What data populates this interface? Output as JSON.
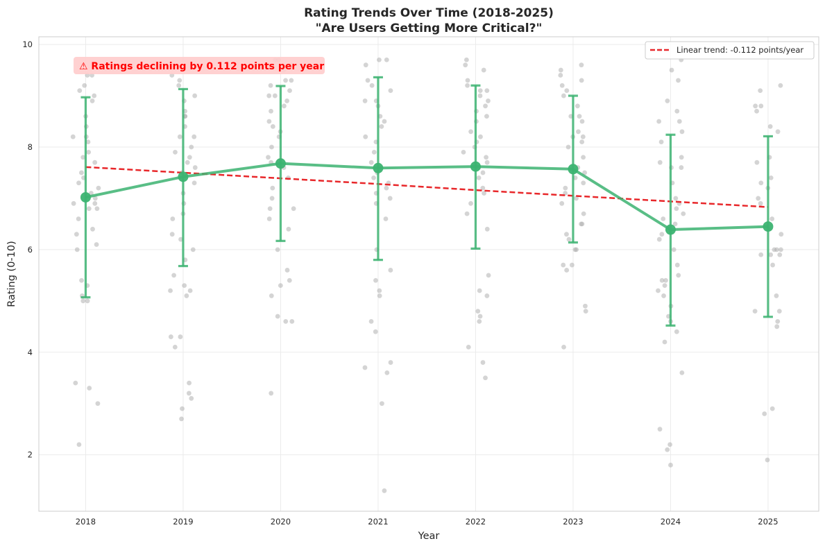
{
  "chart_data": {
    "type": "line",
    "title": "Rating Trends Over Time (2018-2025)",
    "subtitle": "\"Are Users Getting More Critical?\"",
    "xlabel": "Year",
    "ylabel": "Rating (0-10)",
    "x": [
      2018,
      2019,
      2020,
      2021,
      2022,
      2023,
      2024,
      2025
    ],
    "xlim": [
      2017.52,
      2025.52
    ],
    "ylim": [
      0.9,
      10.15
    ],
    "yticks": [
      2,
      4,
      6,
      8,
      10
    ],
    "grid": true,
    "legend_position": "top-right",
    "series": [
      {
        "kind": "mean-with-error",
        "values": [
          7.02,
          7.42,
          7.68,
          7.59,
          7.62,
          7.57,
          6.39,
          6.45
        ],
        "error_low": [
          5.07,
          5.68,
          6.17,
          5.8,
          6.02,
          6.14,
          4.52,
          4.69
        ],
        "error_high": [
          8.97,
          9.13,
          9.19,
          9.36,
          9.2,
          9.0,
          8.24,
          8.21
        ],
        "color": "#3cb371"
      },
      {
        "kind": "trend",
        "name": "Linear trend: -0.112 points/year",
        "values": [
          7.61,
          7.5,
          7.39,
          7.28,
          7.16,
          7.05,
          6.94,
          6.83
        ],
        "color": "#e8272a",
        "style": "dashed"
      }
    ],
    "scatter_color": "#a9a9a9",
    "scatter": [
      {
        "year": 2018,
        "ratings": [
          9.4,
          9.4,
          9.2,
          9.1,
          9.0,
          8.9,
          8.6,
          8.4,
          8.2,
          8.2,
          8.1,
          7.9,
          7.8,
          7.7,
          7.5,
          7.4,
          7.3,
          7.2,
          7.1,
          7.0,
          6.9,
          6.9,
          6.8,
          6.8,
          6.6,
          6.4,
          6.3,
          6.1,
          6.0,
          5.4,
          5.3,
          5.1,
          5.0,
          5.0,
          3.4,
          3.3,
          3.0,
          2.2
        ]
      },
      {
        "year": 2019,
        "ratings": [
          9.4,
          9.3,
          9.2,
          9.0,
          8.9,
          8.7,
          8.6,
          8.6,
          8.4,
          8.2,
          8.2,
          8.0,
          7.9,
          7.8,
          7.7,
          7.6,
          7.5,
          7.3,
          7.1,
          6.9,
          6.7,
          6.6,
          6.3,
          6.2,
          6.0,
          5.8,
          5.5,
          5.3,
          5.2,
          5.2,
          5.1,
          4.3,
          4.3,
          4.1,
          3.4,
          3.2,
          3.1,
          2.9,
          2.7
        ]
      },
      {
        "year": 2020,
        "ratings": [
          9.7,
          9.7,
          9.6,
          9.5,
          9.3,
          9.3,
          9.2,
          9.1,
          9.0,
          9.0,
          8.9,
          8.8,
          8.7,
          8.5,
          8.4,
          8.3,
          8.2,
          8.0,
          7.8,
          7.7,
          7.6,
          7.4,
          7.2,
          7.0,
          6.8,
          6.8,
          6.6,
          6.4,
          6.0,
          5.6,
          5.4,
          5.3,
          5.1,
          4.7,
          4.6,
          4.6,
          3.2
        ]
      },
      {
        "year": 2021,
        "ratings": [
          9.7,
          9.7,
          9.6,
          9.3,
          9.2,
          9.1,
          8.9,
          8.9,
          8.8,
          8.6,
          8.5,
          8.4,
          8.2,
          8.1,
          7.9,
          7.7,
          7.5,
          7.4,
          7.3,
          7.2,
          7.1,
          7.0,
          6.9,
          6.6,
          6.0,
          5.6,
          5.4,
          5.2,
          5.1,
          4.6,
          4.4,
          3.8,
          3.7,
          3.6,
          3.0,
          1.3
        ]
      },
      {
        "year": 2022,
        "ratings": [
          9.7,
          9.6,
          9.5,
          9.3,
          9.2,
          9.1,
          9.1,
          9.0,
          8.9,
          8.8,
          8.7,
          8.6,
          8.5,
          8.3,
          8.2,
          8.1,
          8.0,
          7.9,
          7.8,
          7.7,
          7.6,
          7.5,
          7.4,
          7.2,
          7.1,
          6.9,
          6.7,
          6.4,
          5.5,
          5.2,
          5.1,
          4.8,
          4.7,
          4.6,
          4.1,
          3.8,
          3.5
        ]
      },
      {
        "year": 2023,
        "ratings": [
          9.6,
          9.5,
          9.4,
          9.3,
          9.2,
          9.1,
          9.0,
          8.8,
          8.6,
          8.6,
          8.5,
          8.3,
          8.2,
          8.2,
          8.1,
          8.0,
          7.8,
          7.6,
          7.5,
          7.4,
          7.3,
          7.2,
          7.1,
          7.0,
          6.9,
          6.7,
          6.5,
          6.5,
          6.3,
          6.2,
          6.0,
          6.0,
          5.7,
          5.7,
          5.6,
          4.9,
          4.8,
          4.1
        ]
      },
      {
        "year": 2024,
        "ratings": [
          9.9,
          9.7,
          9.5,
          9.3,
          8.9,
          8.7,
          8.5,
          8.5,
          8.3,
          8.1,
          7.8,
          7.7,
          7.6,
          7.6,
          7.3,
          7.0,
          6.9,
          6.8,
          6.7,
          6.6,
          6.5,
          6.3,
          6.2,
          6.0,
          5.7,
          5.5,
          5.4,
          5.4,
          5.3,
          5.2,
          5.1,
          4.9,
          4.7,
          4.6,
          4.4,
          4.2,
          3.6,
          2.5,
          2.2,
          2.1,
          1.8
        ]
      },
      {
        "year": 2025,
        "ratings": [
          9.2,
          9.1,
          8.8,
          8.8,
          8.7,
          8.4,
          8.3,
          7.8,
          7.7,
          7.4,
          7.3,
          7.2,
          7.0,
          6.9,
          6.6,
          6.4,
          6.3,
          6.0,
          6.0,
          6.0,
          5.9,
          5.9,
          5.9,
          5.7,
          5.1,
          4.8,
          4.8,
          4.6,
          4.5,
          2.9,
          2.8,
          1.9
        ]
      }
    ],
    "annotation": {
      "icon": "warning-icon",
      "text": "⚠ Ratings declining by 0.112 points per year"
    }
  }
}
